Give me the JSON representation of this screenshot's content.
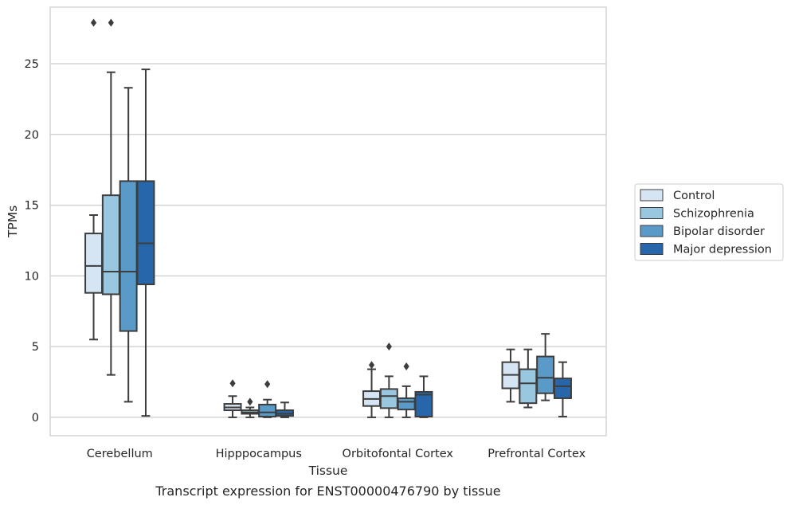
{
  "chart_data": {
    "type": "box",
    "title": "",
    "caption": "Transcript expression for ENST00000476790 by tissue",
    "xlabel": "Tissue",
    "ylabel": "TPMs",
    "ylim": [
      -1.3,
      29.0
    ],
    "yticks": [
      0,
      5,
      10,
      15,
      20,
      25
    ],
    "grid": "horizontal",
    "legend_position": "right",
    "categories": [
      "Cerebellum",
      "Hipppocampus",
      "Orbitofontal Cortex",
      "Prefrontal Cortex"
    ],
    "series": [
      {
        "name": "Control",
        "color": "#d6e5f3",
        "boxes": [
          {
            "whislo": 5.5,
            "q1": 8.8,
            "med": 10.7,
            "q3": 13.0,
            "whishi": 14.3,
            "fliers": [
              27.9
            ]
          },
          {
            "whislo": 0.0,
            "q1": 0.5,
            "med": 0.7,
            "q3": 0.95,
            "whishi": 1.5,
            "fliers": [
              2.4
            ]
          },
          {
            "whislo": 0.0,
            "q1": 0.8,
            "med": 1.3,
            "q3": 1.85,
            "whishi": 3.4,
            "fliers": [
              3.7
            ]
          },
          {
            "whislo": 1.1,
            "q1": 2.05,
            "med": 3.0,
            "q3": 3.9,
            "whishi": 4.8,
            "fliers": []
          }
        ]
      },
      {
        "name": "Schizophrenia",
        "color": "#9ac7e0",
        "boxes": [
          {
            "whislo": 3.0,
            "q1": 8.7,
            "med": 10.3,
            "q3": 15.7,
            "whishi": 24.4,
            "fliers": [
              27.9
            ]
          },
          {
            "whislo": 0.0,
            "q1": 0.25,
            "med": 0.35,
            "q3": 0.5,
            "whishi": 0.7,
            "fliers": [
              1.1
            ]
          },
          {
            "whislo": 0.0,
            "q1": 0.65,
            "med": 1.5,
            "q3": 2.0,
            "whishi": 2.9,
            "fliers": [
              5.0
            ]
          },
          {
            "whislo": 0.7,
            "q1": 1.0,
            "med": 2.4,
            "q3": 3.4,
            "whishi": 4.8,
            "fliers": []
          }
        ]
      },
      {
        "name": "Bipolar disorder",
        "color": "#5a9ac8",
        "boxes": [
          {
            "whislo": 1.1,
            "q1": 6.1,
            "med": 10.3,
            "q3": 16.7,
            "whishi": 23.3,
            "fliers": []
          },
          {
            "whislo": 0.0,
            "q1": 0.05,
            "med": 0.35,
            "q3": 0.9,
            "whishi": 1.25,
            "fliers": [
              2.35
            ]
          },
          {
            "whislo": 0.0,
            "q1": 0.55,
            "med": 1.1,
            "q3": 1.35,
            "whishi": 2.2,
            "fliers": [
              3.6
            ]
          },
          {
            "whislo": 1.2,
            "q1": 1.7,
            "med": 2.8,
            "q3": 4.3,
            "whishi": 5.9,
            "fliers": []
          }
        ]
      },
      {
        "name": "Major depression",
        "color": "#2866ab",
        "boxes": [
          {
            "whislo": 0.1,
            "q1": 9.4,
            "med": 12.3,
            "q3": 16.7,
            "whishi": 24.6,
            "fliers": []
          },
          {
            "whislo": 0.0,
            "q1": 0.1,
            "med": 0.25,
            "q3": 0.5,
            "whishi": 1.05,
            "fliers": []
          },
          {
            "whislo": 0.0,
            "q1": 0.05,
            "med": 1.6,
            "q3": 1.8,
            "whishi": 2.9,
            "fliers": []
          },
          {
            "whislo": 0.05,
            "q1": 1.35,
            "med": 2.2,
            "q3": 2.75,
            "whishi": 3.9,
            "fliers": []
          }
        ]
      }
    ]
  }
}
